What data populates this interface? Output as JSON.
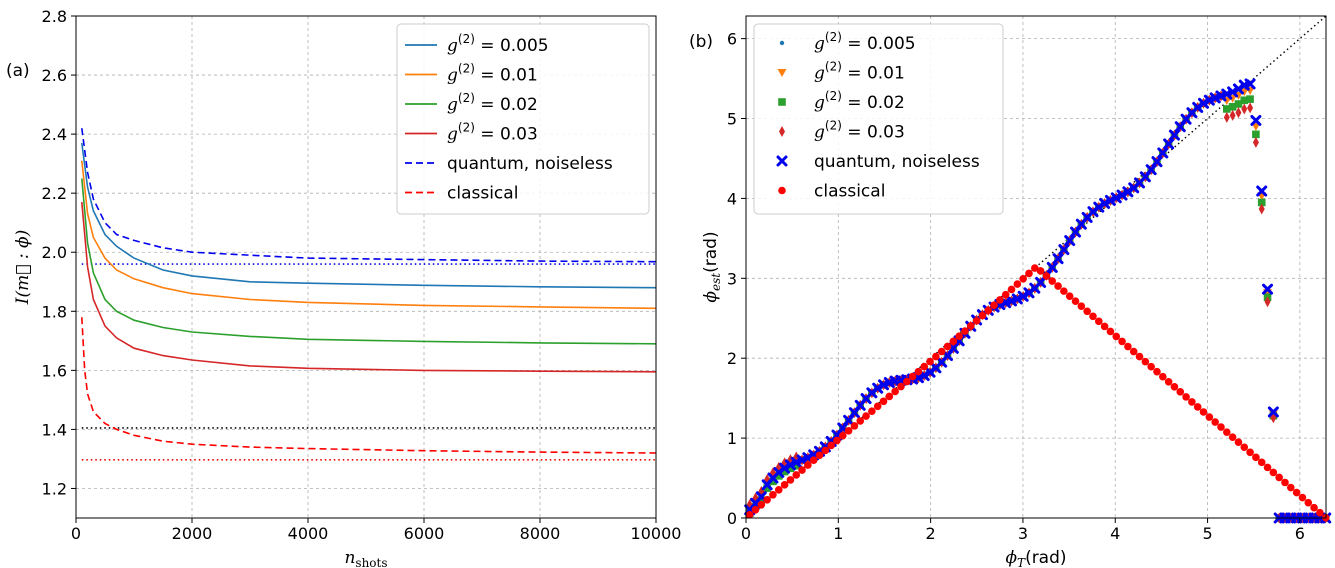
{
  "chart_data": [
    {
      "type": "line",
      "panel_label": "(a)",
      "xlabel": "n",
      "xlabel_sub": "shots",
      "ylabel": "I(m⃗ : ϕ)",
      "xlim": [
        0,
        10000
      ],
      "ylim": [
        1.1,
        2.8
      ],
      "xticks": [
        0,
        2000,
        4000,
        6000,
        8000,
        10000
      ],
      "yticks": [
        1.2,
        1.4,
        1.6,
        1.8,
        2.0,
        2.2,
        2.4,
        2.6,
        2.8
      ],
      "ytick_labels": [
        "1.2",
        "1.4",
        "1.6",
        "1.8",
        "2.0",
        "2.2",
        "2.4",
        "2.6",
        "2.8"
      ],
      "grid": true,
      "legend_position": "upper-right",
      "series": [
        {
          "name": "g(2) = 0.005",
          "sup": "(2)",
          "value": "0.005",
          "color": "#1f77b4",
          "style": "solid",
          "x": [
            100,
            200,
            300,
            500,
            700,
            1000,
            1500,
            2000,
            3000,
            4000,
            6000,
            8000,
            10000
          ],
          "y": [
            2.37,
            2.22,
            2.14,
            2.06,
            2.02,
            1.98,
            1.94,
            1.92,
            1.9,
            1.895,
            1.888,
            1.883,
            1.88
          ]
        },
        {
          "name": "g(2) = 0.01",
          "sup": "(2)",
          "value": "0.01",
          "color": "#ff7f0e",
          "style": "solid",
          "x": [
            100,
            200,
            300,
            500,
            700,
            1000,
            1500,
            2000,
            3000,
            4000,
            6000,
            8000,
            10000
          ],
          "y": [
            2.31,
            2.13,
            2.05,
            1.98,
            1.94,
            1.91,
            1.88,
            1.86,
            1.84,
            1.83,
            1.82,
            1.815,
            1.81
          ]
        },
        {
          "name": "g(2) = 0.02",
          "sup": "(2)",
          "value": "0.02",
          "color": "#2ca02c",
          "style": "solid",
          "x": [
            100,
            200,
            300,
            500,
            700,
            1000,
            1500,
            2000,
            3000,
            4000,
            6000,
            8000,
            10000
          ],
          "y": [
            2.25,
            2.03,
            1.93,
            1.84,
            1.8,
            1.77,
            1.745,
            1.73,
            1.715,
            1.705,
            1.698,
            1.693,
            1.69
          ]
        },
        {
          "name": "g(2) = 0.03",
          "sup": "(2)",
          "value": "0.03",
          "color": "#d62728",
          "style": "solid",
          "x": [
            100,
            200,
            300,
            500,
            700,
            1000,
            1500,
            2000,
            3000,
            4000,
            6000,
            8000,
            10000
          ],
          "y": [
            2.17,
            1.95,
            1.84,
            1.75,
            1.71,
            1.675,
            1.65,
            1.635,
            1.615,
            1.607,
            1.6,
            1.597,
            1.595
          ]
        },
        {
          "name": "quantum, noiseless",
          "color": "#0000ee",
          "style": "dashed",
          "x": [
            100,
            200,
            300,
            500,
            700,
            1000,
            1500,
            2000,
            3000,
            4000,
            6000,
            8000,
            10000
          ],
          "y": [
            2.42,
            2.27,
            2.18,
            2.1,
            2.06,
            2.04,
            2.015,
            2.0,
            1.99,
            1.98,
            1.975,
            1.97,
            1.968
          ]
        },
        {
          "name": "classical",
          "color": "#ff0000",
          "style": "dashed",
          "x": [
            100,
            150,
            200,
            300,
            500,
            700,
            1000,
            1500,
            2000,
            3000,
            4000,
            6000,
            8000,
            10000
          ],
          "y": [
            1.78,
            1.6,
            1.52,
            1.46,
            1.42,
            1.4,
            1.38,
            1.36,
            1.35,
            1.34,
            1.335,
            1.328,
            1.323,
            1.32
          ]
        }
      ],
      "reference_lines": [
        {
          "y": 1.96,
          "x_start": 100,
          "color": "#0000ee",
          "style": "dotted"
        },
        {
          "y": 1.405,
          "x_start": 100,
          "color": "#000000",
          "style": "dotted"
        },
        {
          "y": 1.297,
          "x_start": 100,
          "color": "#ee0000",
          "style": "dotted"
        }
      ]
    },
    {
      "type": "scatter",
      "panel_label": "(b)",
      "xlabel": "ϕ",
      "xlabel_sub": "T",
      "xlabel_tail": "(rad)",
      "ylabel": "ϕ",
      "ylabel_sub": "est",
      "ylabel_tail": "(rad)",
      "xlim": [
        0,
        6.283
      ],
      "ylim": [
        0,
        6.283
      ],
      "xticks": [
        0,
        1,
        2,
        3,
        4,
        5,
        6
      ],
      "yticks": [
        0,
        1,
        2,
        3,
        4,
        5,
        6
      ],
      "grid": true,
      "legend_position": "upper-left",
      "diagonal": {
        "color": "#000000",
        "style": "dotted"
      },
      "n_points": 100,
      "series": [
        {
          "name": "g(2) = 0.005",
          "sup": "(2)",
          "value": "0.005",
          "color": "#1f77b4",
          "marker": "dot",
          "shrink": 1.0
        },
        {
          "name": "g(2) = 0.01",
          "sup": "(2)",
          "value": "0.01",
          "color": "#ff7f0e",
          "marker": "triangle-down",
          "shrink": 0.985
        },
        {
          "name": "g(2) = 0.02",
          "sup": "(2)",
          "value": "0.02",
          "color": "#2ca02c",
          "marker": "square",
          "shrink": 0.965
        },
        {
          "name": "g(2) = 0.03",
          "sup": "(2)",
          "value": "0.03",
          "color": "#d62728",
          "marker": "thin-diamond",
          "shrink": 0.945
        },
        {
          "name": "quantum, noiseless",
          "color": "#0000ee",
          "marker": "x-filled",
          "shrink": 1.0
        },
        {
          "name": "classical",
          "color": "#ff0000",
          "marker": "circle",
          "shrink": 1.0
        }
      ]
    }
  ]
}
